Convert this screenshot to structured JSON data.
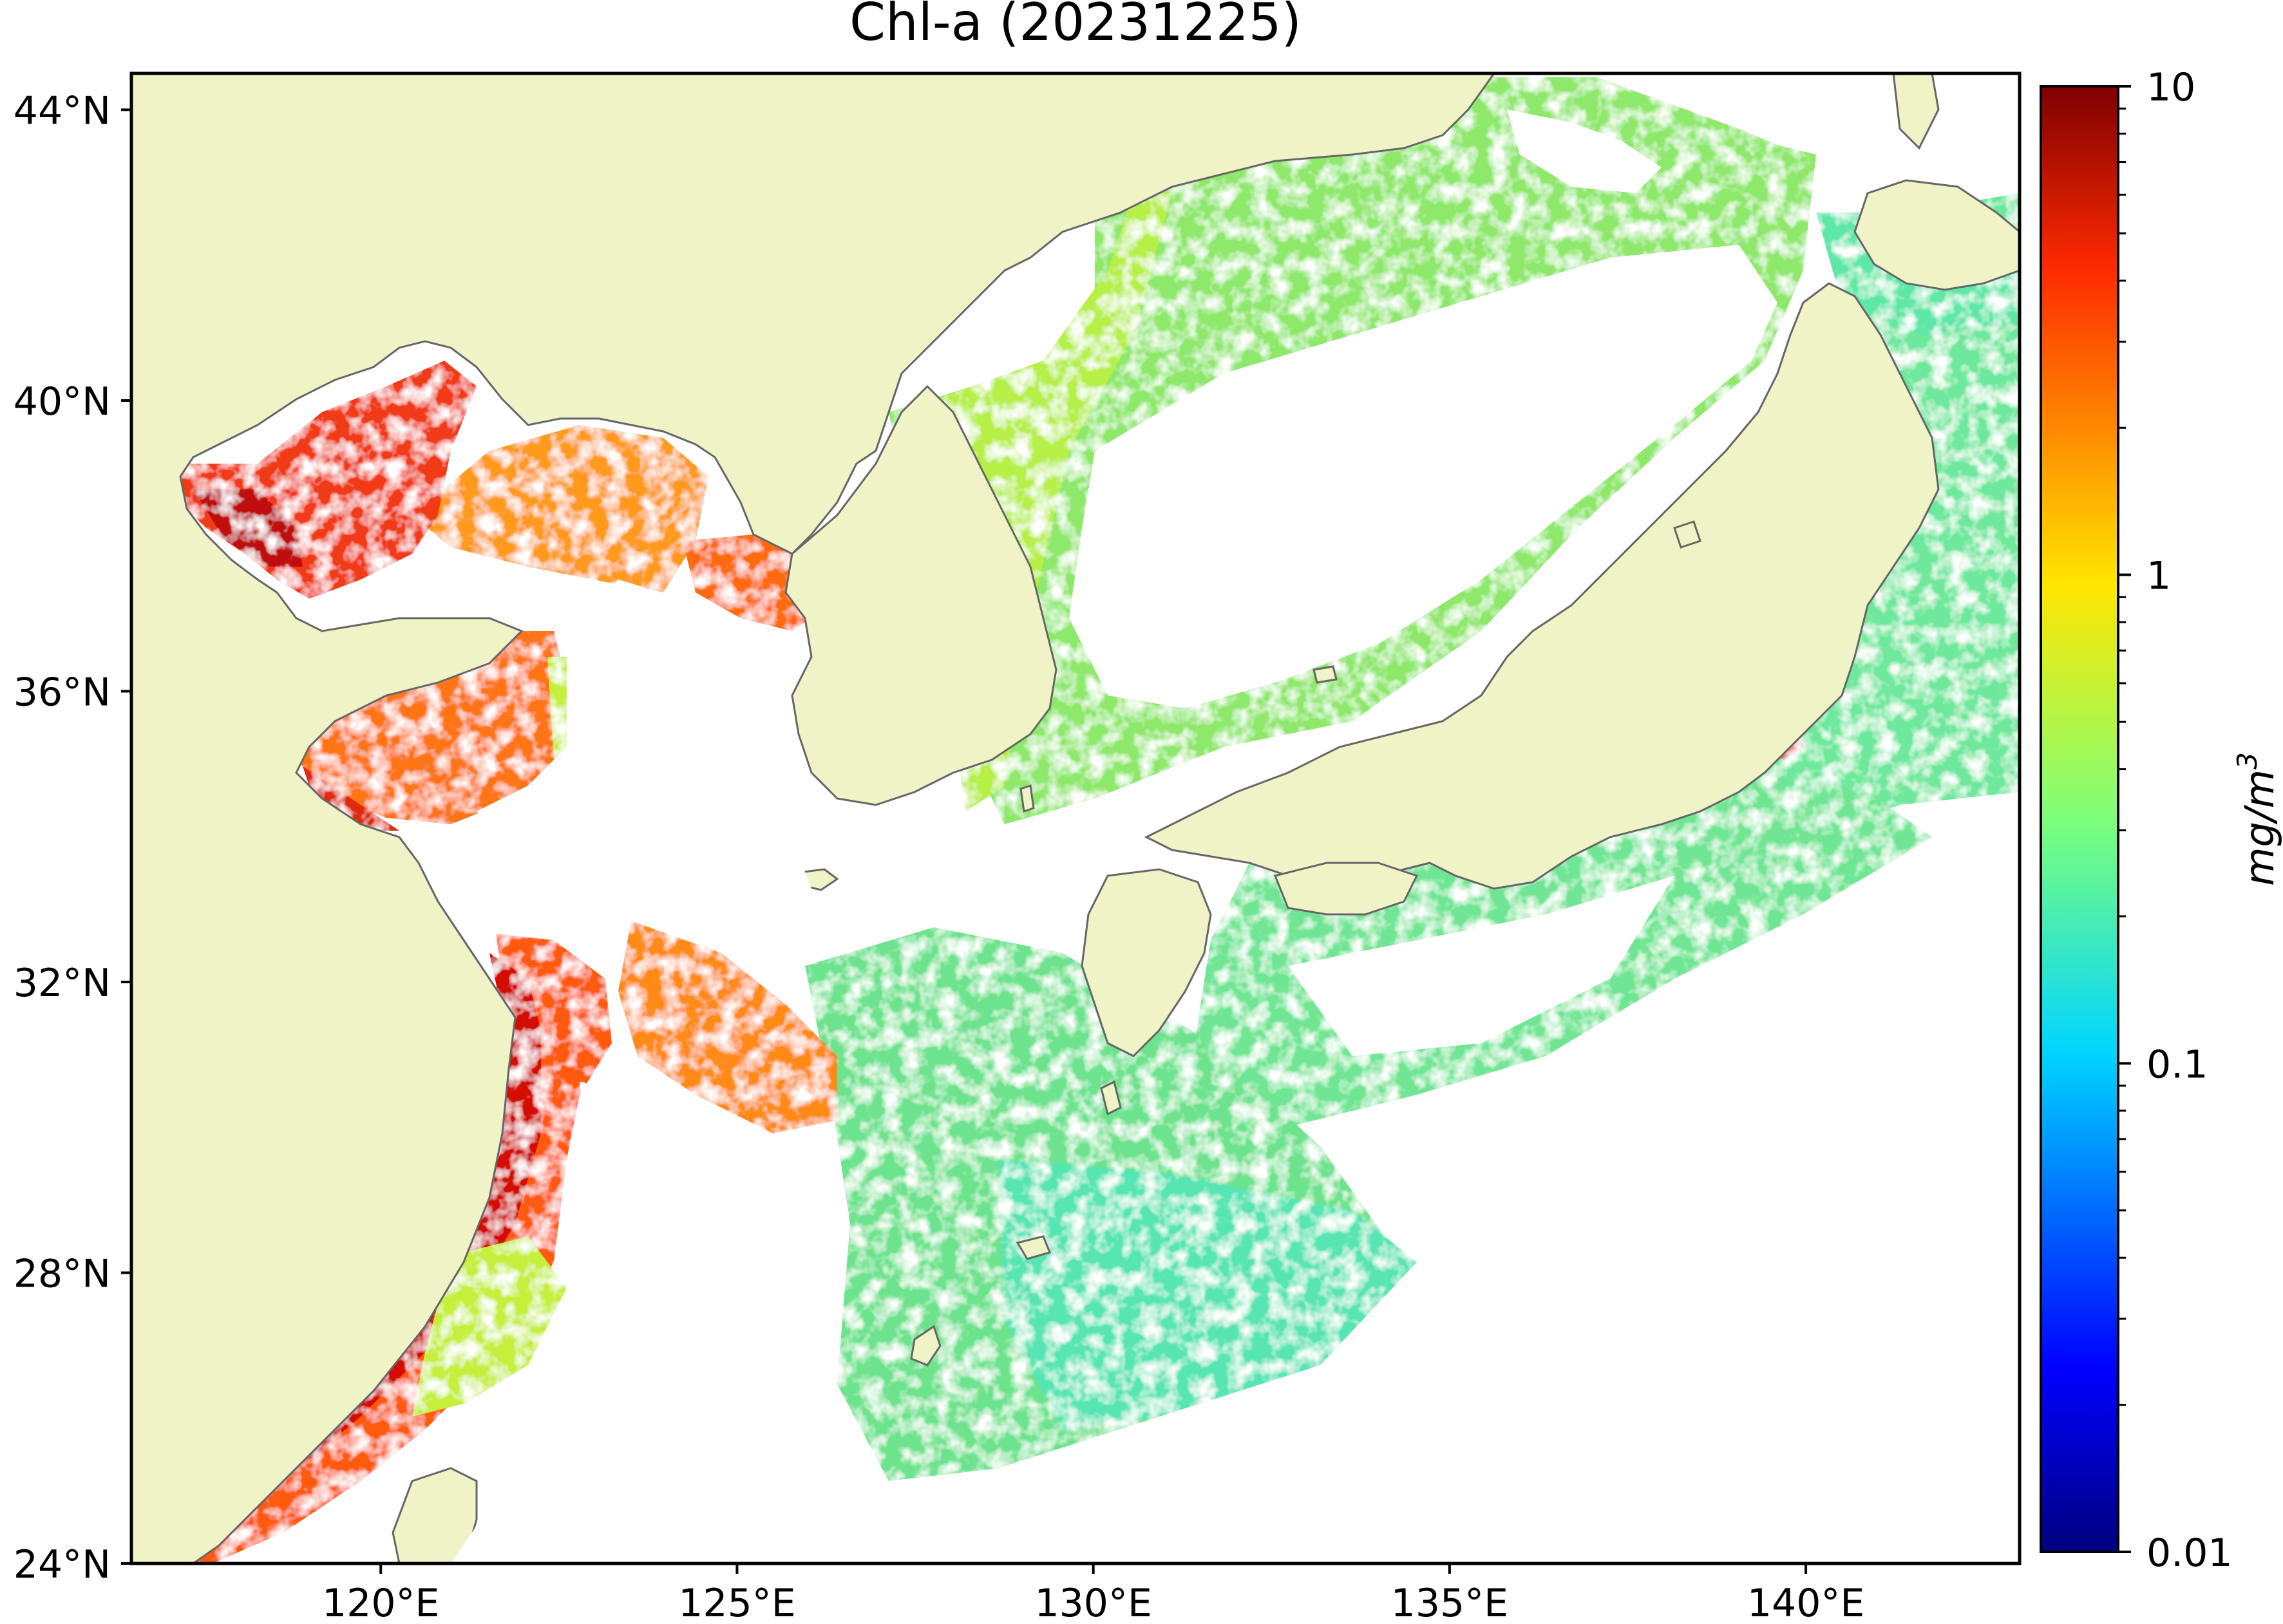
{
  "map": {
    "title": "Chl-a (20231225)",
    "variable": "Chl-a",
    "date": "20231225",
    "extent": {
      "lon": [
        116.5,
        143.0
      ],
      "lat": [
        24.0,
        44.5
      ]
    },
    "lon_ticks": [
      {
        "value": 120,
        "label": "120°E"
      },
      {
        "value": 125,
        "label": "125°E"
      },
      {
        "value": 130,
        "label": "130°E"
      },
      {
        "value": 135,
        "label": "135°E"
      },
      {
        "value": 140,
        "label": "140°E"
      }
    ],
    "lat_ticks": [
      {
        "value": 24,
        "label": "24°N"
      },
      {
        "value": 28,
        "label": "28°N"
      },
      {
        "value": 32,
        "label": "32°N"
      },
      {
        "value": 36,
        "label": "36°N"
      },
      {
        "value": 40,
        "label": "40°N"
      },
      {
        "value": 44,
        "label": "44°N"
      }
    ],
    "land_color": "#f0f3c6",
    "coastline_color": "#666666",
    "no_data_color": "#ffffff"
  },
  "colorbar": {
    "label": "mg/m3",
    "label_base": "mg/m",
    "label_exp": "3",
    "scale": "log",
    "range": [
      0.01,
      10
    ],
    "colormap": "jet",
    "ticks": [
      {
        "value": 10,
        "label": "10"
      },
      {
        "value": 1,
        "label": "1"
      },
      {
        "value": 0.1,
        "label": "0.1"
      },
      {
        "value": 0.01,
        "label": "0.01"
      }
    ]
  }
}
